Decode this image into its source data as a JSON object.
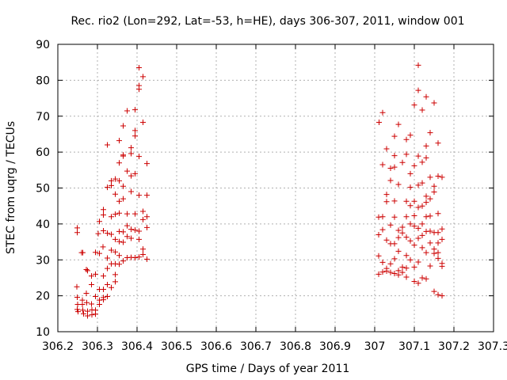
{
  "chart_data": {
    "type": "scatter",
    "title": "Rec. rio2 (Lon=292, Lat=-53, h=HE), days 306-307, 2011, window 001",
    "xlabel": "GPS time / Days of year 2011",
    "ylabel": "STEC from uqrg / TECUs",
    "xlim": [
      306.2,
      307.3
    ],
    "ylim": [
      10,
      90
    ],
    "x_ticks": [
      306.2,
      306.3,
      306.4,
      306.5,
      306.6,
      306.7,
      306.8,
      306.9,
      307.0,
      307.1,
      307.2,
      307.3
    ],
    "x_tick_labels": [
      "306.2",
      "306.3",
      "306.4",
      "306.5",
      "306.6",
      "306.7",
      "306.8",
      "306.9",
      "307",
      "307.1",
      "307.2",
      "307.3"
    ],
    "y_ticks": [
      10,
      20,
      30,
      40,
      50,
      60,
      70,
      80,
      90
    ],
    "y_tick_labels": [
      "10",
      "20",
      "30",
      "40",
      "50",
      "60",
      "70",
      "80",
      "90"
    ],
    "grid": true,
    "marker": "+",
    "color": "#cc0000",
    "points": [
      [
        306.249,
        38.9
      ],
      [
        306.249,
        37.6
      ],
      [
        306.248,
        22.5
      ],
      [
        306.249,
        19.6
      ],
      [
        306.25,
        17.6
      ],
      [
        306.249,
        16.2
      ],
      [
        306.251,
        15.6
      ],
      [
        306.26,
        32.0
      ],
      [
        306.263,
        32.0
      ],
      [
        306.262,
        18.8
      ],
      [
        306.262,
        17.6
      ],
      [
        306.263,
        16.0
      ],
      [
        306.265,
        15.0
      ],
      [
        306.272,
        27.3
      ],
      [
        306.275,
        27.0
      ],
      [
        306.272,
        20.7
      ],
      [
        306.273,
        18.1
      ],
      [
        306.275,
        15.7
      ],
      [
        306.275,
        14.4
      ],
      [
        306.285,
        25.5
      ],
      [
        306.285,
        23.1
      ],
      [
        306.285,
        17.7
      ],
      [
        306.286,
        16.1
      ],
      [
        306.286,
        14.7
      ],
      [
        306.295,
        32.1
      ],
      [
        306.295,
        26.0
      ],
      [
        306.295,
        19.8
      ],
      [
        306.295,
        16.0
      ],
      [
        306.295,
        14.9
      ],
      [
        306.305,
        40.7
      ],
      [
        306.302,
        37.3
      ],
      [
        306.305,
        31.8
      ],
      [
        306.305,
        21.8
      ],
      [
        306.305,
        18.8
      ],
      [
        306.305,
        17.6
      ],
      [
        306.315,
        44.0
      ],
      [
        306.315,
        42.5
      ],
      [
        306.315,
        38.1
      ],
      [
        306.314,
        33.6
      ],
      [
        306.315,
        25.5
      ],
      [
        306.315,
        21.8
      ],
      [
        306.315,
        19.5
      ],
      [
        306.315,
        18.9
      ],
      [
        306.325,
        62.0
      ],
      [
        306.325,
        50.2
      ],
      [
        306.325,
        37.4
      ],
      [
        306.325,
        30.5
      ],
      [
        306.325,
        27.6
      ],
      [
        306.325,
        23.1
      ],
      [
        306.325,
        19.8
      ],
      [
        306.335,
        52.0
      ],
      [
        306.335,
        50.7
      ],
      [
        306.335,
        42.0
      ],
      [
        306.335,
        37.1
      ],
      [
        306.335,
        32.7
      ],
      [
        306.335,
        28.9
      ],
      [
        306.335,
        22.3
      ],
      [
        306.345,
        52.5
      ],
      [
        306.345,
        48.3
      ],
      [
        306.345,
        42.7
      ],
      [
        306.345,
        35.7
      ],
      [
        306.345,
        32.2
      ],
      [
        306.345,
        28.9
      ],
      [
        306.345,
        25.9
      ],
      [
        306.345,
        23.9
      ],
      [
        306.355,
        63.2
      ],
      [
        306.355,
        57.0
      ],
      [
        306.355,
        52.0
      ],
      [
        306.355,
        46.3
      ],
      [
        306.355,
        43.0
      ],
      [
        306.355,
        37.9
      ],
      [
        306.355,
        35.1
      ],
      [
        306.355,
        31.2
      ],
      [
        306.355,
        28.8
      ],
      [
        306.365,
        67.3
      ],
      [
        306.365,
        59.2
      ],
      [
        306.365,
        58.9
      ],
      [
        306.365,
        50.5
      ],
      [
        306.365,
        47.0
      ],
      [
        306.365,
        37.8
      ],
      [
        306.365,
        34.9
      ],
      [
        306.365,
        29.7
      ],
      [
        306.375,
        71.5
      ],
      [
        306.375,
        54.7
      ],
      [
        306.375,
        42.8
      ],
      [
        306.375,
        39.5
      ],
      [
        306.375,
        36.5
      ],
      [
        306.375,
        30.6
      ],
      [
        306.385,
        61.2
      ],
      [
        306.385,
        59.6
      ],
      [
        306.385,
        53.4
      ],
      [
        306.385,
        49.0
      ],
      [
        306.385,
        38.5
      ],
      [
        306.385,
        36.0
      ],
      [
        306.385,
        30.7
      ],
      [
        306.395,
        71.8
      ],
      [
        306.395,
        66.0
      ],
      [
        306.395,
        64.5
      ],
      [
        306.395,
        54.0
      ],
      [
        306.395,
        42.8
      ],
      [
        306.395,
        38.3
      ],
      [
        306.395,
        30.6
      ],
      [
        306.405,
        83.5
      ],
      [
        306.405,
        78.5
      ],
      [
        306.405,
        77.5
      ],
      [
        306.405,
        58.8
      ],
      [
        306.405,
        48.0
      ],
      [
        306.405,
        38.0
      ],
      [
        306.405,
        35.7
      ],
      [
        306.405,
        30.8
      ],
      [
        306.415,
        81.0
      ],
      [
        306.415,
        68.3
      ],
      [
        306.415,
        43.5
      ],
      [
        306.415,
        41.2
      ],
      [
        306.415,
        33.0
      ],
      [
        306.415,
        31.5
      ],
      [
        306.425,
        56.8
      ],
      [
        306.425,
        48.0
      ],
      [
        306.425,
        42.0
      ],
      [
        306.425,
        39.0
      ],
      [
        306.425,
        30.2
      ],
      [
        307.011,
        68.3
      ],
      [
        307.01,
        41.9
      ],
      [
        307.01,
        37.0
      ],
      [
        307.01,
        31.1
      ],
      [
        307.01,
        26.0
      ],
      [
        307.02,
        71.0
      ],
      [
        307.02,
        56.5
      ],
      [
        307.02,
        42.0
      ],
      [
        307.02,
        38.4
      ],
      [
        307.02,
        29.3
      ],
      [
        307.02,
        26.6
      ],
      [
        307.03,
        60.9
      ],
      [
        307.03,
        48.2
      ],
      [
        307.03,
        46.2
      ],
      [
        307.03,
        35.5
      ],
      [
        307.03,
        27.6
      ],
      [
        307.03,
        26.9
      ],
      [
        307.04,
        55.5
      ],
      [
        307.04,
        52.1
      ],
      [
        307.04,
        39.7
      ],
      [
        307.04,
        34.5
      ],
      [
        307.04,
        28.9
      ],
      [
        307.04,
        26.5
      ],
      [
        307.05,
        64.4
      ],
      [
        307.05,
        59.0
      ],
      [
        307.05,
        55.8
      ],
      [
        307.05,
        46.4
      ],
      [
        307.05,
        41.9
      ],
      [
        307.05,
        34.5
      ],
      [
        307.05,
        30.3
      ],
      [
        307.05,
        26.2
      ],
      [
        307.06,
        67.7
      ],
      [
        307.06,
        51.0
      ],
      [
        307.06,
        38.2
      ],
      [
        307.06,
        36.2
      ],
      [
        307.06,
        32.4
      ],
      [
        307.06,
        27.0
      ],
      [
        307.06,
        25.8
      ],
      [
        307.07,
        57.1
      ],
      [
        307.07,
        39.1
      ],
      [
        307.07,
        37.5
      ],
      [
        307.07,
        28.0
      ],
      [
        307.07,
        26.5
      ],
      [
        307.08,
        63.5
      ],
      [
        307.08,
        59.4
      ],
      [
        307.08,
        46.3
      ],
      [
        307.08,
        42.0
      ],
      [
        307.08,
        36.3
      ],
      [
        307.08,
        31.2
      ],
      [
        307.08,
        27.7
      ],
      [
        307.08,
        25.2
      ],
      [
        307.09,
        64.7
      ],
      [
        307.09,
        54.0
      ],
      [
        307.09,
        50.2
      ],
      [
        307.09,
        45.1
      ],
      [
        307.09,
        40.0
      ],
      [
        307.09,
        35.3
      ],
      [
        307.09,
        30.0
      ],
      [
        307.1,
        73.1
      ],
      [
        307.1,
        56.2
      ],
      [
        307.1,
        46.3
      ],
      [
        307.1,
        42.3
      ],
      [
        307.1,
        39.4
      ],
      [
        307.1,
        34.1
      ],
      [
        307.1,
        28.0
      ],
      [
        307.1,
        24.0
      ],
      [
        307.11,
        84.2
      ],
      [
        307.11,
        77.2
      ],
      [
        307.11,
        58.9
      ],
      [
        307.11,
        50.8
      ],
      [
        307.11,
        44.6
      ],
      [
        307.11,
        38.8
      ],
      [
        307.11,
        36.0
      ],
      [
        307.11,
        29.4
      ],
      [
        307.11,
        23.5
      ],
      [
        307.12,
        71.7
      ],
      [
        307.12,
        57.2
      ],
      [
        307.12,
        51.4
      ],
      [
        307.12,
        45.0
      ],
      [
        307.12,
        40.0
      ],
      [
        307.12,
        36.8
      ],
      [
        307.12,
        33.4
      ],
      [
        307.12,
        25.0
      ],
      [
        307.13,
        75.4
      ],
      [
        307.13,
        61.7
      ],
      [
        307.13,
        58.4
      ],
      [
        307.13,
        47.7
      ],
      [
        307.13,
        46.0
      ],
      [
        307.13,
        42.0
      ],
      [
        307.13,
        37.9
      ],
      [
        307.13,
        32.0
      ],
      [
        307.13,
        24.7
      ],
      [
        307.14,
        65.4
      ],
      [
        307.14,
        53.0
      ],
      [
        307.14,
        47.0
      ],
      [
        307.14,
        42.2
      ],
      [
        307.14,
        38.0
      ],
      [
        307.14,
        34.7
      ],
      [
        307.14,
        28.3
      ],
      [
        307.15,
        73.7
      ],
      [
        307.15,
        50.5
      ],
      [
        307.15,
        48.9
      ],
      [
        307.15,
        37.6
      ],
      [
        307.15,
        33.0
      ],
      [
        307.15,
        31.8
      ],
      [
        307.15,
        21.2
      ],
      [
        307.16,
        62.5
      ],
      [
        307.16,
        53.3
      ],
      [
        307.16,
        42.9
      ],
      [
        307.16,
        37.6
      ],
      [
        307.16,
        34.7
      ],
      [
        307.16,
        32.0
      ],
      [
        307.16,
        30.4
      ],
      [
        307.16,
        20.3
      ],
      [
        307.17,
        53.0
      ],
      [
        307.17,
        38.6
      ],
      [
        307.17,
        35.7
      ],
      [
        307.17,
        29.0
      ],
      [
        307.17,
        28.2
      ],
      [
        307.17,
        20.0
      ]
    ]
  }
}
